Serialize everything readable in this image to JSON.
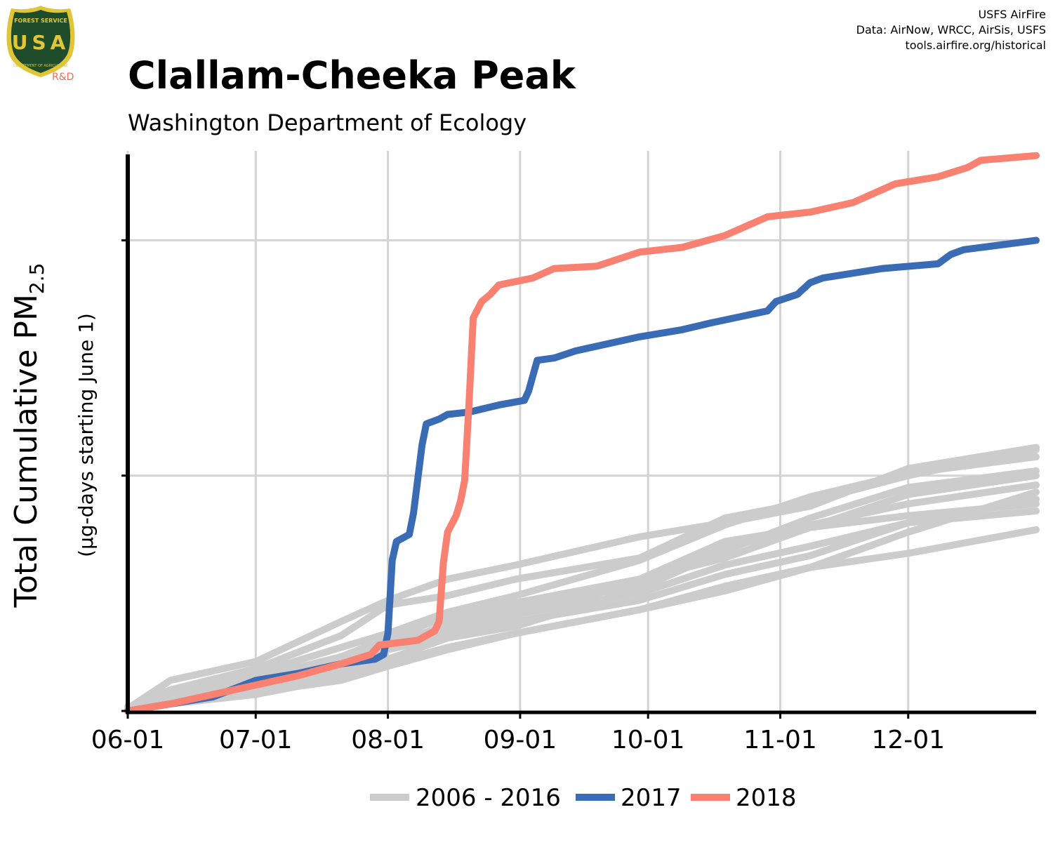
{
  "logo": {
    "top_text": "FOREST SERVICE",
    "letters": "USA",
    "bottom_text": "DEPARTMENT OF AGRICULTURE",
    "tag": "R&D",
    "colors": {
      "shield": "#1f4d2b",
      "trim": "#e0c536",
      "tag": "#e8705a"
    }
  },
  "credits": {
    "line1": "USFS AirFire",
    "line2": "Data: AirNow, WRCC, AirSis, USFS",
    "line3": "tools.airfire.org/historical"
  },
  "header": {
    "title": "Clallam-Cheeka Peak",
    "subtitle": "Washington Department of Ecology"
  },
  "axes": {
    "ylabel_main": "Total Cumulative PM",
    "ylabel_sub": "2.5",
    "ylabel_units": "(µg-days starting June 1)"
  },
  "legend": {
    "historical": "2006 - 2016",
    "y2017": "2017",
    "y2018": "2018"
  },
  "chart_data": {
    "type": "line",
    "xlabel": "",
    "ylabel": "Total Cumulative PM2.5 (µg-days starting June 1)",
    "x_tick_labels": [
      "06-01",
      "07-01",
      "08-01",
      "09-01",
      "10-01",
      "11-01",
      "12-01"
    ],
    "x_tick_days": [
      0,
      30,
      61,
      92,
      122,
      153,
      183
    ],
    "xlim": [
      0,
      213
    ],
    "ylim": [
      0,
      2380
    ],
    "y_gridlines": [
      1000,
      2000
    ],
    "y_tick_labels": [],
    "grid": true,
    "legend_position": "bottom",
    "series": [
      {
        "name": "2017",
        "color": "#3a6cb5",
        "points": [
          [
            0,
            0
          ],
          [
            10,
            30
          ],
          [
            20,
            60
          ],
          [
            30,
            130
          ],
          [
            40,
            160
          ],
          [
            50,
            200
          ],
          [
            58,
            220
          ],
          [
            60,
            240
          ],
          [
            61,
            330
          ],
          [
            62,
            640
          ],
          [
            63,
            720
          ],
          [
            66,
            750
          ],
          [
            67,
            840
          ],
          [
            69,
            1130
          ],
          [
            70,
            1220
          ],
          [
            73,
            1240
          ],
          [
            75,
            1260
          ],
          [
            80,
            1270
          ],
          [
            87,
            1300
          ],
          [
            93,
            1320
          ],
          [
            94,
            1360
          ],
          [
            96,
            1490
          ],
          [
            100,
            1500
          ],
          [
            105,
            1530
          ],
          [
            120,
            1590
          ],
          [
            130,
            1620
          ],
          [
            137,
            1650
          ],
          [
            150,
            1700
          ],
          [
            152,
            1740
          ],
          [
            157,
            1770
          ],
          [
            160,
            1820
          ],
          [
            163,
            1840
          ],
          [
            177,
            1880
          ],
          [
            190,
            1900
          ],
          [
            193,
            1940
          ],
          [
            196,
            1960
          ],
          [
            213,
            2000
          ]
        ]
      },
      {
        "name": "2018",
        "color": "#f88172",
        "points": [
          [
            0,
            0
          ],
          [
            10,
            30
          ],
          [
            20,
            70
          ],
          [
            30,
            110
          ],
          [
            40,
            150
          ],
          [
            50,
            200
          ],
          [
            57,
            240
          ],
          [
            59,
            280
          ],
          [
            68,
            300
          ],
          [
            72,
            340
          ],
          [
            73,
            380
          ],
          [
            74,
            630
          ],
          [
            75,
            760
          ],
          [
            77,
            830
          ],
          [
            78,
            890
          ],
          [
            79,
            980
          ],
          [
            80,
            1300
          ],
          [
            81,
            1670
          ],
          [
            83,
            1740
          ],
          [
            85,
            1770
          ],
          [
            87,
            1810
          ],
          [
            95,
            1840
          ],
          [
            100,
            1880
          ],
          [
            110,
            1890
          ],
          [
            120,
            1950
          ],
          [
            130,
            1970
          ],
          [
            140,
            2020
          ],
          [
            145,
            2060
          ],
          [
            150,
            2100
          ],
          [
            160,
            2120
          ],
          [
            170,
            2160
          ],
          [
            180,
            2240
          ],
          [
            190,
            2270
          ],
          [
            197,
            2310
          ],
          [
            200,
            2340
          ],
          [
            213,
            2360
          ]
        ]
      },
      {
        "name": "2006 - 2016",
        "color": "#cccccc",
        "lines": [
          [
            [
              0,
              10
            ],
            [
              10,
              130
            ],
            [
              30,
              210
            ],
            [
              50,
              380
            ],
            [
              61,
              470
            ],
            [
              75,
              560
            ],
            [
              91,
              620
            ],
            [
              120,
              740
            ],
            [
              140,
              800
            ],
            [
              160,
              870
            ],
            [
              183,
              1030
            ],
            [
              213,
              1120
            ]
          ],
          [
            [
              0,
              0
            ],
            [
              10,
              50
            ],
            [
              30,
              110
            ],
            [
              50,
              180
            ],
            [
              61,
              270
            ],
            [
              75,
              370
            ],
            [
              91,
              440
            ],
            [
              120,
              560
            ],
            [
              140,
              650
            ],
            [
              160,
              780
            ],
            [
              183,
              920
            ],
            [
              213,
              1000
            ]
          ],
          [
            [
              0,
              20
            ],
            [
              10,
              40
            ],
            [
              30,
              90
            ],
            [
              50,
              160
            ],
            [
              61,
              220
            ],
            [
              75,
              310
            ],
            [
              91,
              360
            ],
            [
              120,
              520
            ],
            [
              140,
              680
            ],
            [
              160,
              820
            ],
            [
              183,
              950
            ],
            [
              213,
              1020
            ]
          ],
          [
            [
              0,
              0
            ],
            [
              10,
              60
            ],
            [
              30,
              160
            ],
            [
              50,
              270
            ],
            [
              61,
              330
            ],
            [
              75,
              420
            ],
            [
              91,
              490
            ],
            [
              120,
              640
            ],
            [
              140,
              790
            ],
            [
              160,
              910
            ],
            [
              183,
              1010
            ],
            [
              213,
              1080
            ]
          ],
          [
            [
              0,
              0
            ],
            [
              10,
              40
            ],
            [
              30,
              80
            ],
            [
              50,
              130
            ],
            [
              61,
              190
            ],
            [
              75,
              260
            ],
            [
              91,
              330
            ],
            [
              120,
              430
            ],
            [
              140,
              510
            ],
            [
              160,
              610
            ],
            [
              183,
              760
            ],
            [
              213,
              930
            ]
          ],
          [
            [
              0,
              0
            ],
            [
              10,
              40
            ],
            [
              30,
              100
            ],
            [
              50,
              200
            ],
            [
              61,
              270
            ],
            [
              75,
              340
            ],
            [
              91,
              410
            ],
            [
              120,
              500
            ],
            [
              140,
              620
            ],
            [
              160,
              700
            ],
            [
              183,
              800
            ],
            [
              213,
              900
            ]
          ],
          [
            [
              0,
              10
            ],
            [
              10,
              90
            ],
            [
              30,
              180
            ],
            [
              50,
              320
            ],
            [
              61,
              450
            ],
            [
              75,
              490
            ],
            [
              91,
              560
            ],
            [
              120,
              650
            ],
            [
              140,
              820
            ],
            [
              160,
              890
            ],
            [
              183,
              1000
            ],
            [
              213,
              1110
            ]
          ],
          [
            [
              0,
              0
            ],
            [
              10,
              50
            ],
            [
              30,
              120
            ],
            [
              50,
              210
            ],
            [
              61,
              290
            ],
            [
              75,
              360
            ],
            [
              91,
              420
            ],
            [
              120,
              540
            ],
            [
              140,
              690
            ],
            [
              160,
              790
            ],
            [
              183,
              880
            ],
            [
              213,
              960
            ]
          ],
          [
            [
              0,
              0
            ],
            [
              10,
              30
            ],
            [
              30,
              70
            ],
            [
              50,
              140
            ],
            [
              61,
              200
            ],
            [
              75,
              270
            ],
            [
              91,
              330
            ],
            [
              120,
              430
            ],
            [
              140,
              530
            ],
            [
              160,
              610
            ],
            [
              183,
              670
            ],
            [
              213,
              770
            ]
          ],
          [
            [
              0,
              10
            ],
            [
              10,
              70
            ],
            [
              30,
              130
            ],
            [
              50,
              190
            ],
            [
              61,
              260
            ],
            [
              75,
              320
            ],
            [
              91,
              380
            ],
            [
              120,
              470
            ],
            [
              140,
              580
            ],
            [
              160,
              660
            ],
            [
              183,
              800
            ],
            [
              213,
              850
            ]
          ],
          [
            [
              0,
              0
            ],
            [
              10,
              60
            ],
            [
              30,
              140
            ],
            [
              50,
              230
            ],
            [
              61,
              310
            ],
            [
              75,
              400
            ],
            [
              91,
              460
            ],
            [
              120,
              560
            ],
            [
              140,
              720
            ],
            [
              160,
              780
            ],
            [
              183,
              830
            ],
            [
              213,
              880
            ]
          ]
        ]
      }
    ]
  }
}
